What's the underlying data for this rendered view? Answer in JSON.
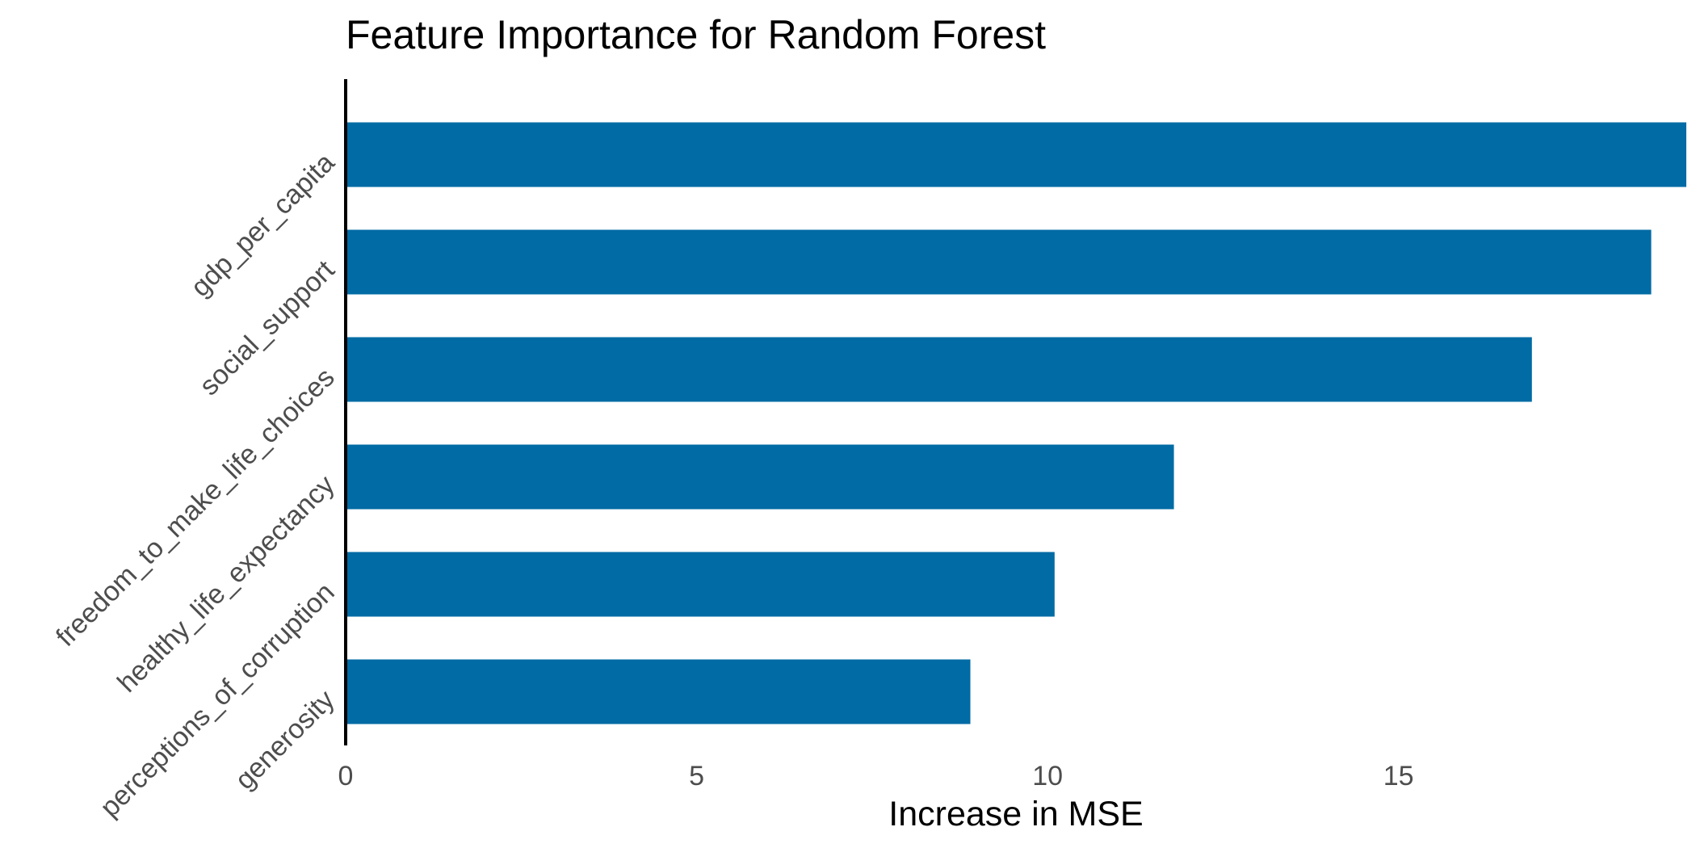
{
  "chart_data": {
    "type": "bar",
    "orientation": "horizontal",
    "title": "Feature Importance for Random Forest",
    "xlabel": "Increase in MSE",
    "ylabel": "",
    "categories": [
      "gdp_per_capita",
      "social_support",
      "freedom_to_make_life_choices",
      "healthy_life_expectancy",
      "perceptions_of_corruption",
      "generosity"
    ],
    "values": [
      19.1,
      18.6,
      16.9,
      11.8,
      10.1,
      8.9
    ],
    "xlim": [
      0,
      19.1
    ],
    "x_ticks": [
      0,
      5,
      10,
      15
    ],
    "x_tick_labels": [
      "0",
      "5",
      "10",
      "15"
    ],
    "bar_color": "#006BA4",
    "grid": false,
    "legend": "none"
  }
}
